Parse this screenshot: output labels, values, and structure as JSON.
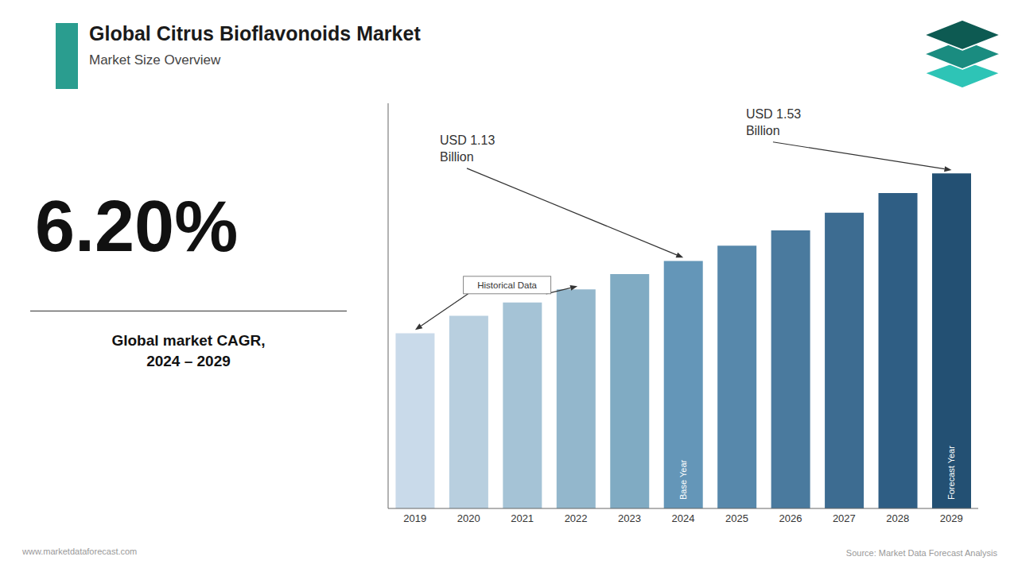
{
  "chart_data": {
    "type": "bar",
    "title": "Global Citrus Bioflavonoids Market",
    "subtitle": "Market Size Overview",
    "categories": [
      "2019",
      "2020",
      "2021",
      "2022",
      "2023",
      "2024",
      "2025",
      "2026",
      "2027",
      "2028",
      "2029"
    ],
    "values": [
      0.8,
      0.88,
      0.94,
      1.0,
      1.07,
      1.13,
      1.2,
      1.27,
      1.35,
      1.44,
      1.53
    ],
    "colors": [
      "#c9daea",
      "#b8cfdf",
      "#a5c3d6",
      "#93b7cc",
      "#80abc3",
      "#6496b8",
      "#5788ab",
      "#4a7a9e",
      "#3d6c91",
      "#2f5e84",
      "#235073"
    ],
    "ylim": [
      0,
      1.85
    ],
    "tick_labels": "x",
    "grid": false,
    "annotations": [
      "6.20%",
      "Global market CAGR,\n2024 – 2029",
      "USD 1.13\nBillion",
      "USD 1.53\nBillion",
      "Historical Data",
      "Base Year",
      "Forecast Year",
      "www.marketdataforecast.com",
      "Source: Market Data Forecast Analysis"
    ]
  }
}
